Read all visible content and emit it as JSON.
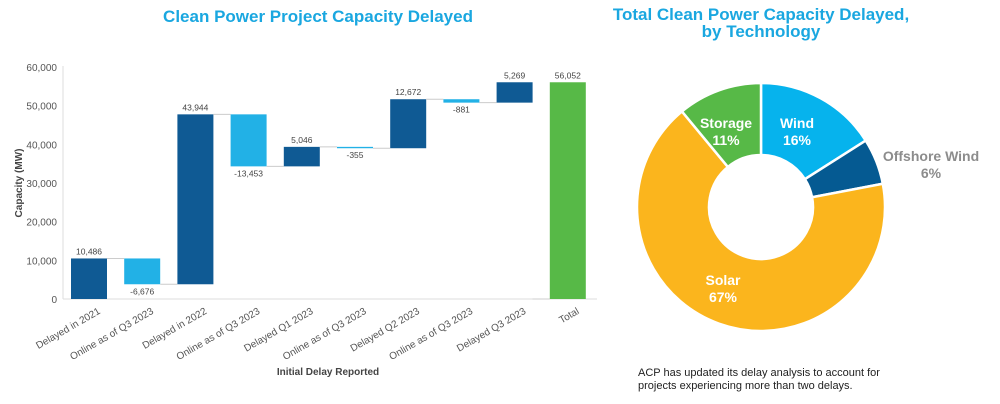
{
  "chart_data": [
    {
      "type": "waterfall",
      "title": "Clean Power Project Capacity Delayed",
      "xlabel": "Initial Delay Reported",
      "ylabel": "Capacity (MW)",
      "ylim": [
        0,
        60000
      ],
      "yticks": [
        "0",
        "10,000",
        "20,000",
        "30,000",
        "40,000",
        "50,000",
        "60,000"
      ],
      "categories": [
        "Delayed in 2021",
        "Online as of Q3 2023",
        "Delayed in 2022",
        "Online as of Q3 2023",
        "Delayed Q1 2023",
        "Online as of Q3 2023",
        "Delayed Q2 2023",
        "Online as of Q3 2023",
        "Delayed Q3 2023",
        "Total"
      ],
      "values": [
        10486,
        -6676,
        43944,
        -13453,
        5046,
        -355,
        12672,
        -881,
        5269,
        56052
      ],
      "labels": [
        "10,486",
        "-6,676",
        "43,944",
        "-13,453",
        "5,046",
        "-355",
        "12,672",
        "-881",
        "5,269",
        "56,052"
      ],
      "is_total": [
        false,
        false,
        false,
        false,
        false,
        false,
        false,
        false,
        false,
        true
      ],
      "colors": {
        "increase": "#0f5a94",
        "decrease": "#22b1e6",
        "total": "#57b947"
      },
      "grid": false
    },
    {
      "type": "pie",
      "title": "Total Clean Power Capacity Delayed, by Technology",
      "title_lines": [
        "Total Clean Power Capacity Delayed,",
        "by Technology"
      ],
      "donut": true,
      "slices": [
        {
          "name": "Wind",
          "value": 16,
          "label": "16%",
          "color": "#06b3ed"
        },
        {
          "name": "Offshore Wind",
          "value": 6,
          "label": "6%",
          "color": "#055a92"
        },
        {
          "name": "Solar",
          "value": 67,
          "label": "67%",
          "color": "#fbb51d"
        },
        {
          "name": "Storage",
          "value": 11,
          "label": "11%",
          "color": "#57b947"
        }
      ]
    }
  ],
  "note": "ACP has updated its delay analysis to account for projects experiencing more than two delays."
}
